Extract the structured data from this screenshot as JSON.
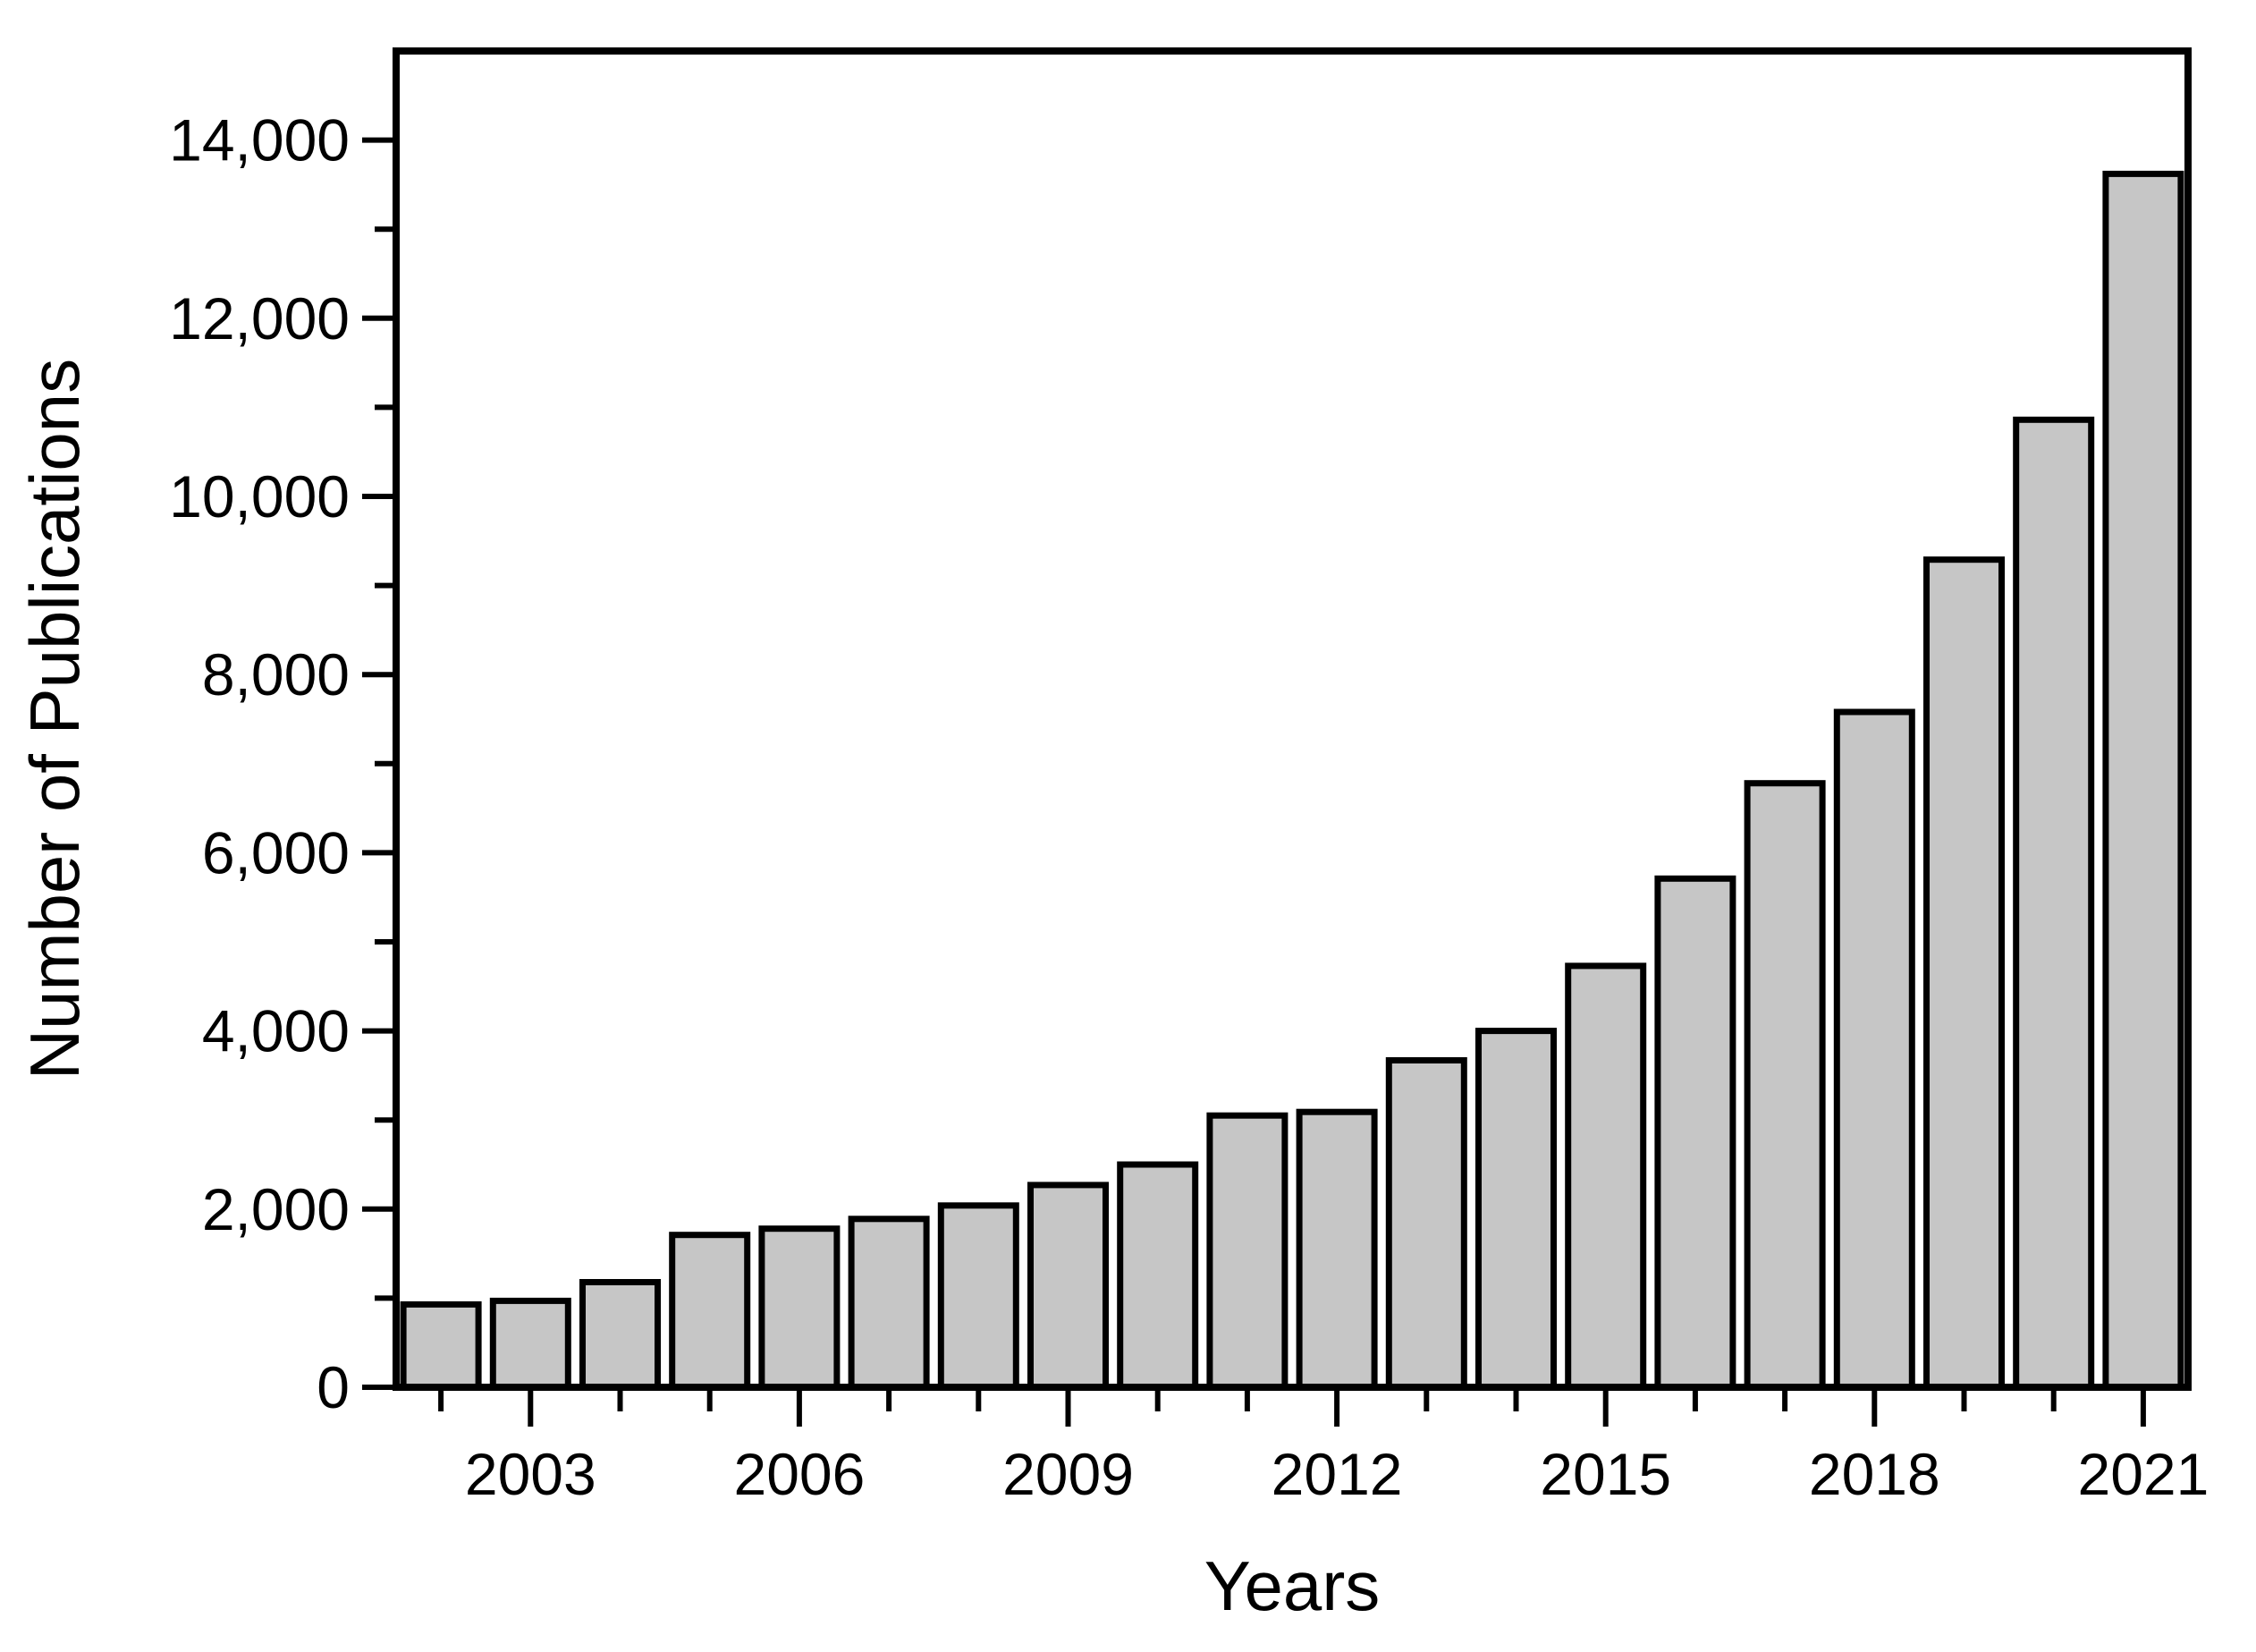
{
  "figure": {
    "background": "#ffffff",
    "bar_fill": "#c6c6c6",
    "bar_stroke": "#000000",
    "axis_color": "#000000"
  },
  "chart_data": {
    "type": "bar",
    "title": "",
    "xlabel": "Years",
    "ylabel": "Number of Publications",
    "categories": [
      2002,
      2003,
      2004,
      2005,
      2006,
      2007,
      2008,
      2009,
      2010,
      2011,
      2012,
      2013,
      2014,
      2015,
      2016,
      2017,
      2018,
      2019,
      2020,
      2021
    ],
    "values": [
      930,
      970,
      1180,
      1710,
      1780,
      1890,
      2040,
      2270,
      2500,
      3050,
      3090,
      3670,
      4000,
      4730,
      5710,
      6780,
      7580,
      9290,
      10860,
      13620
    ],
    "ylim": [
      0,
      15000
    ],
    "y_major_tick_step": 2000,
    "y_minor_tick_step": 1000,
    "y_tick_labels": [
      {
        "value": 0,
        "label": "0"
      },
      {
        "value": 2000,
        "label": "2,000"
      },
      {
        "value": 4000,
        "label": "4,000"
      },
      {
        "value": 6000,
        "label": "6,000"
      },
      {
        "value": 8000,
        "label": "8,000"
      },
      {
        "value": 10000,
        "label": "10,000"
      },
      {
        "value": 12000,
        "label": "12,000"
      },
      {
        "value": 14000,
        "label": "14,000"
      }
    ],
    "x_labeled_ticks": [
      2003,
      2006,
      2009,
      2012,
      2015,
      2018,
      2021
    ],
    "grid": false,
    "legend": false,
    "frame": "full-box"
  }
}
